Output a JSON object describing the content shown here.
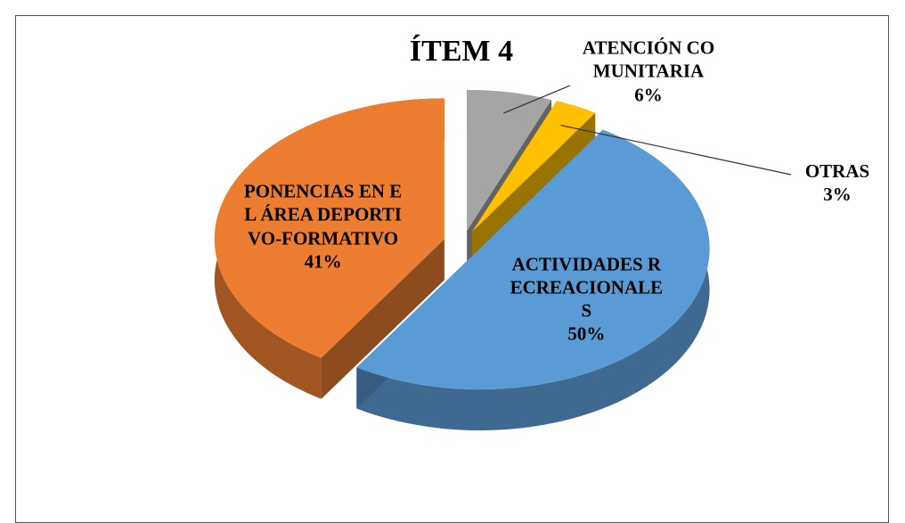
{
  "chart_data": {
    "type": "pie",
    "title": "ÍTEM 4",
    "categories": [
      "ATENCIÓN COMUNITARIA",
      "OTRAS",
      "ACTIVIDADES RECREACIONALES",
      "PONENCIAS EN EL ÁREA DEPORTIVO-FORMATIVO"
    ],
    "values": [
      6,
      3,
      50,
      41
    ],
    "value_labels": [
      "6%",
      "3%",
      "50%",
      "41%"
    ],
    "colors": [
      "#a5a5a5",
      "#ffc000",
      "#5b9bd5",
      "#ed7d31"
    ]
  }
}
